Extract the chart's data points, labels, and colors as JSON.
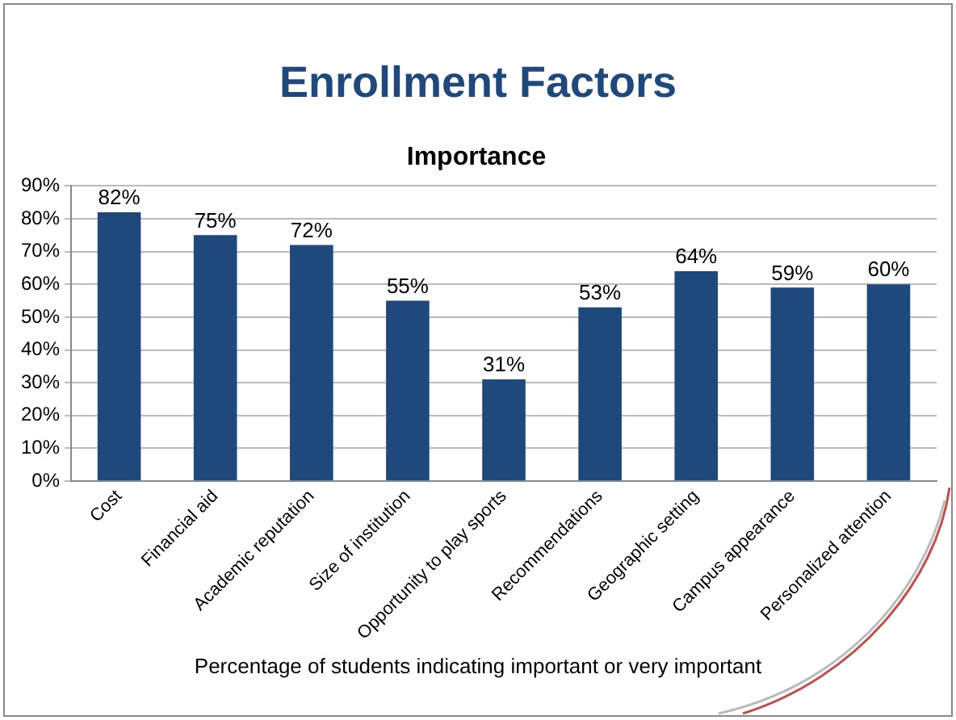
{
  "chart_data": {
    "type": "bar",
    "title": "Enrollment Factors",
    "subtitle": "Importance",
    "categories": [
      "Cost",
      "Financial aid",
      "Academic reputation",
      "Size of institution",
      "Opportunity to play sports",
      "Recommendations",
      "Geographic setting",
      "Campus appearance",
      "Personalized attention"
    ],
    "values": [
      82,
      75,
      72,
      55,
      31,
      53,
      64,
      59,
      60
    ],
    "value_labels": [
      "82%",
      "75%",
      "72%",
      "55%",
      "31%",
      "53%",
      "64%",
      "59%",
      "60%"
    ],
    "color": "#1f497d",
    "ylim": [
      0,
      90
    ],
    "yticks": [
      {
        "value": 0,
        "label": "0%"
      },
      {
        "value": 10,
        "label": "10%"
      },
      {
        "value": 20,
        "label": "20%"
      },
      {
        "value": 30,
        "label": "30%"
      },
      {
        "value": 40,
        "label": "40%"
      },
      {
        "value": 50,
        "label": "50%"
      },
      {
        "value": 60,
        "label": "60%"
      },
      {
        "value": 70,
        "label": "70%"
      },
      {
        "value": 80,
        "label": "80%"
      },
      {
        "value": 90,
        "label": "90%"
      }
    ],
    "grid": "y",
    "annotations": [
      "Percentage of students indicating important or very important"
    ]
  }
}
